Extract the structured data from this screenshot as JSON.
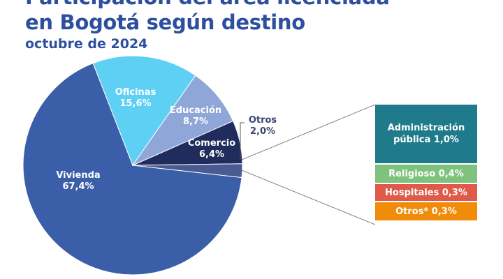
{
  "title_line1": "Participación del área licenciada",
  "title_line2": "en Bogotá según destino",
  "subtitle": "octubre de 2024",
  "chart_data": [
    {
      "type": "pie",
      "title": "Participación del área licenciada en Bogotá según destino",
      "subtitle": "octubre de 2024",
      "slices": [
        {
          "name": "Vivienda",
          "value": 67.4,
          "label": "67,4%",
          "color": "#3a5ea8"
        },
        {
          "name": "Oficinas",
          "value": 15.6,
          "label": "15,6%",
          "color": "#5dd0f4"
        },
        {
          "name": "Educación",
          "value": 8.7,
          "label": "8,7%",
          "color": "#8fa6d8"
        },
        {
          "name": "Comercio",
          "value": 6.4,
          "label": "6,4%",
          "color": "#1f2c5c"
        },
        {
          "name": "Otros",
          "value": 2.0,
          "label": "2,0%",
          "color": "#4a5b92"
        }
      ]
    },
    {
      "type": "bar",
      "title": "Otros",
      "stacked": true,
      "segments": [
        {
          "name": "Administración pública",
          "value": 1.0,
          "label": "Administración pública 1,0%",
          "color": "#1f7b8c"
        },
        {
          "name": "Religioso",
          "value": 0.4,
          "label": "Religioso 0,4%",
          "color": "#7ec27e"
        },
        {
          "name": "Hospitales",
          "value": 0.3,
          "label": "Hospitales 0,3%",
          "color": "#df5a4b"
        },
        {
          "name": "Otros*",
          "value": 0.3,
          "label": "Otros* 0,3%",
          "color": "#f08c0a"
        }
      ]
    }
  ]
}
